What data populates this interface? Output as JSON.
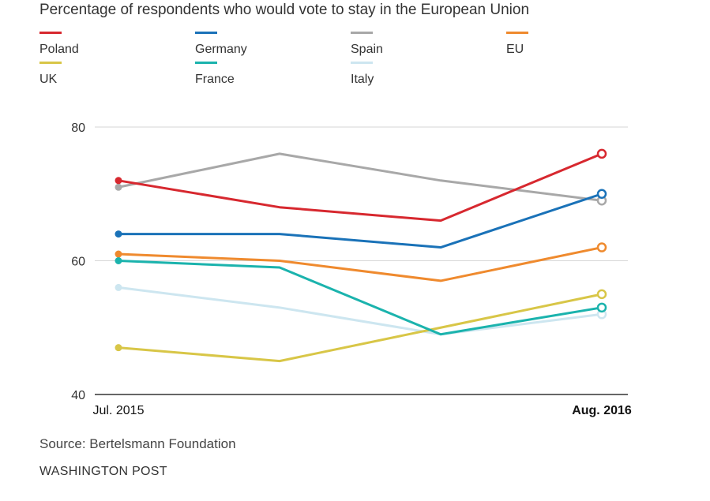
{
  "chart_data": {
    "type": "line",
    "title": "Percentage of respondents who would vote to stay in the European Union",
    "x": [
      0,
      1,
      2,
      3
    ],
    "x_tick_labels": [
      "Jul. 2015",
      "",
      "",
      "Aug. 2016"
    ],
    "ylim": [
      40,
      80
    ],
    "y_ticks": [
      40,
      60,
      80
    ],
    "grid": true,
    "legend_placement": "top",
    "series": [
      {
        "name": "Poland",
        "color": "#d7282f",
        "values": [
          72,
          68,
          66,
          76
        ]
      },
      {
        "name": "Germany",
        "color": "#1a72b8",
        "values": [
          64,
          64,
          62,
          70
        ]
      },
      {
        "name": "Spain",
        "color": "#a8a8a8",
        "values": [
          71,
          76,
          72,
          69
        ]
      },
      {
        "name": "EU",
        "color": "#ef8a2e",
        "values": [
          61,
          60,
          57,
          62
        ]
      },
      {
        "name": "UK",
        "color": "#d8c647",
        "values": [
          47,
          45,
          50,
          55
        ]
      },
      {
        "name": "France",
        "color": "#1bb3ad",
        "values": [
          60,
          59,
          49,
          53
        ]
      },
      {
        "name": "Italy",
        "color": "#cde6f0",
        "values": [
          56,
          53,
          49,
          52
        ]
      }
    ]
  },
  "footer": {
    "source": "Source: Bertelsmann Foundation",
    "credit": "WASHINGTON POST"
  }
}
